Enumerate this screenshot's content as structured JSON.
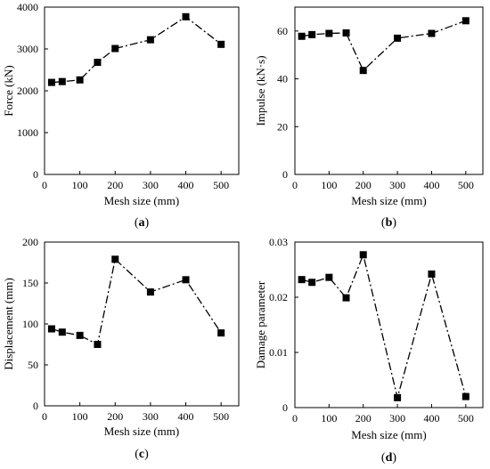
{
  "panels": [
    {
      "caption_letter": "a",
      "chart_data": {
        "type": "line",
        "title": "",
        "xlabel": "Mesh size (mm)",
        "ylabel": "Force (kN)",
        "x": [
          20,
          50,
          100,
          150,
          200,
          300,
          400,
          500
        ],
        "series": [
          {
            "values": [
              2200,
              2220,
              2260,
              2680,
              3010,
              3220,
              3770,
              3110
            ]
          }
        ],
        "xlim": [
          0,
          550
        ],
        "ylim": [
          0,
          4000
        ],
        "xticks": [
          "0",
          "100",
          "200",
          "300",
          "400",
          "500"
        ],
        "yticks": [
          "0",
          "1000",
          "2000",
          "3000",
          "4000"
        ],
        "xtick_values": [
          0,
          100,
          200,
          300,
          400,
          500
        ],
        "ytick_values": [
          0,
          1000,
          2000,
          3000,
          4000
        ],
        "line_style": "dash-dot",
        "marker": "square",
        "grid": false
      }
    },
    {
      "caption_letter": "b",
      "chart_data": {
        "type": "line",
        "title": "",
        "xlabel": "Mesh size (mm)",
        "ylabel": "Impulse (kN·s)",
        "x": [
          20,
          50,
          100,
          150,
          200,
          300,
          400,
          500
        ],
        "series": [
          {
            "values": [
              57.8,
              58.5,
              59.0,
              59.2,
              43.5,
              57.0,
              59.0,
              64.3
            ]
          }
        ],
        "xlim": [
          0,
          550
        ],
        "ylim": [
          0,
          70
        ],
        "xticks": [
          "0",
          "100",
          "200",
          "300",
          "400",
          "500"
        ],
        "yticks": [
          "0",
          "20",
          "40",
          "60"
        ],
        "xtick_values": [
          0,
          100,
          200,
          300,
          400,
          500
        ],
        "ytick_values": [
          0,
          20,
          40,
          60
        ],
        "line_style": "dash-dot",
        "marker": "square",
        "grid": false
      }
    },
    {
      "caption_letter": "c",
      "chart_data": {
        "type": "line",
        "title": "",
        "xlabel": "Mesh size (mm)",
        "ylabel": "Displacement (mm)",
        "x": [
          20,
          50,
          100,
          150,
          200,
          300,
          400,
          500
        ],
        "series": [
          {
            "values": [
              94,
              90,
              86,
              75,
              179,
              139,
              154,
              89
            ]
          }
        ],
        "xlim": [
          0,
          550
        ],
        "ylim": [
          0,
          200
        ],
        "xticks": [
          "0",
          "100",
          "200",
          "300",
          "400",
          "500"
        ],
        "yticks": [
          "0",
          "50",
          "100",
          "150",
          "200"
        ],
        "xtick_values": [
          0,
          100,
          200,
          300,
          400,
          500
        ],
        "ytick_values": [
          0,
          50,
          100,
          150,
          200
        ],
        "line_style": "dash-dot",
        "marker": "square",
        "grid": false
      }
    },
    {
      "caption_letter": "d",
      "chart_data": {
        "type": "line",
        "title": "",
        "xlabel": "Mesh size (mm)",
        "ylabel": "Damage parameter",
        "x": [
          20,
          50,
          100,
          150,
          200,
          300,
          400,
          500
        ],
        "series": [
          {
            "values": [
              0.0232,
              0.0227,
              0.0236,
              0.0199,
              0.0277,
              0.0018,
              0.0242,
              0.002
            ]
          }
        ],
        "xlim": [
          0,
          550
        ],
        "ylim": [
          0,
          0.03
        ],
        "xticks": [
          "0",
          "100",
          "200",
          "300",
          "400",
          "500"
        ],
        "yticks": [
          "0",
          "0.01",
          "0.02",
          "0.03"
        ],
        "xtick_values": [
          0,
          100,
          200,
          300,
          400,
          500
        ],
        "ytick_values": [
          0,
          0.01,
          0.02,
          0.03
        ],
        "line_style": "dash-dot",
        "marker": "square",
        "grid": false
      }
    }
  ]
}
